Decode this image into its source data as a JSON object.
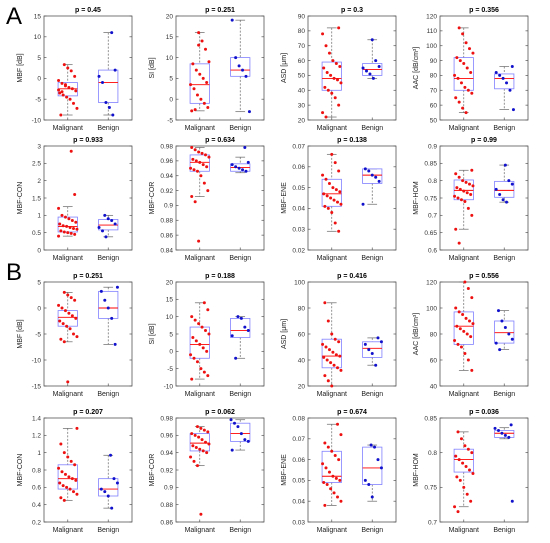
{
  "section_labels": [
    "A",
    "B"
  ],
  "colors": {
    "box": "#8080ff",
    "whisker": "#666666",
    "median": "#ff0000",
    "malignant_point": "#ee1111",
    "benign_point": "#1111cc",
    "axis": "#555555"
  },
  "chart_data": [
    {
      "section": "A",
      "type": "box",
      "title": "p = 0.45",
      "ylabel": "MBF [dB]",
      "ylim": [
        -10,
        15
      ],
      "yticks": [
        -10,
        -5,
        0,
        5,
        10,
        15
      ],
      "categories": [
        "Malignant",
        "Benign"
      ],
      "boxes": [
        {
          "q1": -4.2,
          "median": -2.5,
          "q3": -1.0,
          "lo": -8.8,
          "hi": 3.3
        },
        {
          "q1": -5.8,
          "median": -1.0,
          "q3": 2.0,
          "lo": -8.8,
          "hi": 11.0
        }
      ],
      "points": [
        [
          -0.5,
          -1.2,
          -1.8,
          -2.2,
          -2.5,
          -3.0,
          -3.5,
          -4.0,
          -4.5,
          -5.0,
          -6.0,
          -7.2,
          -8.8,
          3.3,
          2.5,
          1.8,
          0.5,
          -2.8,
          -3.2,
          -1.5
        ],
        [
          11.0,
          2.0,
          0.5,
          -1.0,
          -5.8,
          -7.0,
          -8.8
        ]
      ]
    },
    {
      "section": "A",
      "type": "box",
      "title": "p = 0.251",
      "ylabel": "SI [dB]",
      "ylim": [
        -5,
        20
      ],
      "yticks": [
        -5,
        0,
        5,
        10,
        15,
        20
      ],
      "categories": [
        "Malignant",
        "Benign"
      ],
      "boxes": [
        {
          "q1": -1.0,
          "median": 3.5,
          "q3": 8.5,
          "lo": -2.8,
          "hi": 16.0
        },
        {
          "q1": 5.5,
          "median": 7.0,
          "q3": 10.0,
          "lo": -3.0,
          "hi": 19.0
        }
      ],
      "points": [
        [
          16.0,
          14.0,
          12.0,
          9.0,
          8.5,
          7.0,
          6.0,
          5.0,
          4.0,
          3.5,
          2.5,
          1.0,
          0.0,
          -1.0,
          -2.0,
          -2.8,
          -2.5,
          13.0
        ],
        [
          19.0,
          10.0,
          8.0,
          7.0,
          5.5,
          -3.0
        ]
      ]
    },
    {
      "section": "A",
      "type": "box",
      "title": "p = 0.3",
      "ylabel": "ASD [μm]",
      "ylim": [
        20,
        90
      ],
      "yticks": [
        20,
        30,
        40,
        50,
        60,
        70,
        80,
        90
      ],
      "categories": [
        "Malignant",
        "Benign"
      ],
      "boxes": [
        {
          "q1": 40.0,
          "median": 48.0,
          "q3": 59.0,
          "lo": 22.0,
          "hi": 82.0
        },
        {
          "q1": 50.0,
          "median": 54.0,
          "q3": 58.0,
          "lo": 48.0,
          "hi": 74.0
        }
      ],
      "points": [
        [
          82.0,
          78.0,
          70.0,
          65.0,
          60.0,
          58.0,
          56.0,
          55.0,
          52.0,
          50.0,
          48.0,
          47.0,
          45.0,
          42.0,
          40.0,
          38.0,
          35.0,
          30.0,
          25.0,
          22.0
        ],
        [
          74.0,
          60.0,
          56.0,
          55.0,
          53.0,
          51.0,
          48.0
        ]
      ]
    },
    {
      "section": "A",
      "type": "box",
      "title": "p = 0.356",
      "ylabel": "AAC [dB/cm³]",
      "ylim": [
        50,
        120
      ],
      "yticks": [
        50,
        60,
        70,
        80,
        90,
        100,
        110,
        120
      ],
      "categories": [
        "Malignant",
        "Benign"
      ],
      "boxes": [
        {
          "q1": 70.0,
          "median": 78.0,
          "q3": 92.0,
          "lo": 55.0,
          "hi": 112.0
        },
        {
          "q1": 71.0,
          "median": 78.0,
          "q3": 81.0,
          "lo": 57.0,
          "hi": 86.0
        }
      ],
      "points": [
        [
          112.0,
          108.0,
          102.0,
          98.0,
          95.0,
          92.0,
          90.0,
          88.0,
          85.0,
          82.0,
          80.0,
          78.0,
          75.0,
          72.0,
          70.0,
          68.0,
          65.0,
          62.0,
          58.0,
          55.0
        ],
        [
          86.0,
          82.0,
          80.0,
          78.0,
          75.0,
          70.0,
          57.0
        ]
      ]
    },
    {
      "section": "A",
      "type": "box",
      "title": "p = 0.933",
      "ylabel": "MBF-CON",
      "ylim": [
        0,
        3
      ],
      "yticks": [
        0,
        0.5,
        1,
        1.5,
        2,
        2.5,
        3
      ],
      "categories": [
        "Malignant",
        "Benign"
      ],
      "boxes": [
        {
          "q1": 0.52,
          "median": 0.68,
          "q3": 0.95,
          "lo": 0.4,
          "hi": 1.25
        },
        {
          "q1": 0.58,
          "median": 0.72,
          "q3": 0.88,
          "lo": 0.38,
          "hi": 1.0
        }
      ],
      "points": [
        [
          2.85,
          1.6,
          1.2,
          1.0,
          0.95,
          0.9,
          0.85,
          0.8,
          0.75,
          0.7,
          0.68,
          0.65,
          0.62,
          0.6,
          0.55,
          0.52,
          0.5,
          0.48,
          0.45,
          0.4
        ],
        [
          1.0,
          0.9,
          0.85,
          0.75,
          0.65,
          0.55,
          0.38
        ]
      ]
    },
    {
      "section": "A",
      "type": "box",
      "title": "p = 0.634",
      "ylabel": "MBF-COR",
      "ylim": [
        0.84,
        0.98
      ],
      "yticks": [
        0.84,
        0.86,
        0.88,
        0.9,
        0.92,
        0.94,
        0.96,
        0.98
      ],
      "categories": [
        "Malignant",
        "Benign"
      ],
      "boxes": [
        {
          "q1": 0.946,
          "median": 0.958,
          "q3": 0.968,
          "lo": 0.912,
          "hi": 0.978
        },
        {
          "q1": 0.946,
          "median": 0.951,
          "q3": 0.956,
          "lo": 0.944,
          "hi": 0.965
        }
      ],
      "points": [
        [
          0.978,
          0.975,
          0.972,
          0.97,
          0.968,
          0.965,
          0.962,
          0.96,
          0.958,
          0.955,
          0.952,
          0.95,
          0.948,
          0.946,
          0.94,
          0.93,
          0.92,
          0.912,
          0.905,
          0.852
        ],
        [
          0.978,
          0.958,
          0.955,
          0.952,
          0.95,
          0.948,
          0.946
        ]
      ]
    },
    {
      "section": "A",
      "type": "box",
      "title": "p = 0.138",
      "ylabel": "MBF-ENE",
      "ylim": [
        0.02,
        0.07
      ],
      "yticks": [
        0.02,
        0.03,
        0.04,
        0.05,
        0.06,
        0.07
      ],
      "categories": [
        "Malignant",
        "Benign"
      ],
      "boxes": [
        {
          "q1": 0.041,
          "median": 0.047,
          "q3": 0.054,
          "lo": 0.029,
          "hi": 0.066
        },
        {
          "q1": 0.052,
          "median": 0.056,
          "q3": 0.059,
          "lo": 0.042,
          "hi": 0.059
        }
      ],
      "points": [
        [
          0.066,
          0.062,
          0.058,
          0.056,
          0.054,
          0.052,
          0.05,
          0.049,
          0.048,
          0.047,
          0.046,
          0.045,
          0.044,
          0.043,
          0.042,
          0.041,
          0.04,
          0.038,
          0.033,
          0.029
        ],
        [
          0.059,
          0.058,
          0.056,
          0.055,
          0.053,
          0.042
        ]
      ]
    },
    {
      "section": "A",
      "type": "box",
      "title": "p = 0.99",
      "ylabel": "MBF-HOM",
      "ylim": [
        0.6,
        0.9
      ],
      "yticks": [
        0.6,
        0.65,
        0.7,
        0.75,
        0.8,
        0.85,
        0.9
      ],
      "categories": [
        "Malignant",
        "Benign"
      ],
      "boxes": [
        {
          "q1": 0.745,
          "median": 0.772,
          "q3": 0.802,
          "lo": 0.66,
          "hi": 0.83
        },
        {
          "q1": 0.752,
          "median": 0.772,
          "q3": 0.798,
          "lo": 0.738,
          "hi": 0.845
        }
      ],
      "points": [
        [
          0.83,
          0.82,
          0.81,
          0.8,
          0.795,
          0.79,
          0.785,
          0.78,
          0.775,
          0.77,
          0.765,
          0.76,
          0.755,
          0.75,
          0.745,
          0.74,
          0.72,
          0.7,
          0.66,
          0.62
        ],
        [
          0.845,
          0.8,
          0.79,
          0.775,
          0.76,
          0.745,
          0.738
        ]
      ]
    },
    {
      "section": "B",
      "type": "box",
      "title": "p = 0.251",
      "ylabel": "MBF [dB]",
      "ylim": [
        -15,
        5
      ],
      "yticks": [
        -15,
        -10,
        -5,
        0,
        5
      ],
      "categories": [
        "Malignant",
        "Benign"
      ],
      "boxes": [
        {
          "q1": -3.5,
          "median": -1.8,
          "q3": -0.5,
          "lo": -6.5,
          "hi": 3.0
        },
        {
          "q1": -2.0,
          "median": 0.0,
          "q3": 3.2,
          "lo": -7.0,
          "hi": 4.0
        }
      ],
      "points": [
        [
          3.0,
          2.5,
          2.0,
          1.5,
          0.5,
          0.0,
          -0.5,
          -1.0,
          -1.5,
          -2.0,
          -2.5,
          -3.0,
          -3.5,
          -4.0,
          -5.0,
          -5.5,
          -6.0,
          -6.5,
          -14.2
        ],
        [
          4.0,
          3.2,
          1.5,
          0.0,
          -2.0,
          -7.0
        ]
      ]
    },
    {
      "section": "B",
      "type": "box",
      "title": "p = 0.188",
      "ylabel": "SI [dB]",
      "ylim": [
        -10,
        20
      ],
      "yticks": [
        -10,
        -5,
        0,
        5,
        10,
        15,
        20
      ],
      "categories": [
        "Malignant",
        "Benign"
      ],
      "boxes": [
        {
          "q1": -2.0,
          "median": 2.0,
          "q3": 7.0,
          "lo": -8.0,
          "hi": 14.0
        },
        {
          "q1": 4.0,
          "median": 6.0,
          "q3": 9.5,
          "lo": -2.0,
          "hi": 10.0
        }
      ],
      "points": [
        [
          14.0,
          12.0,
          10.0,
          9.0,
          8.0,
          7.0,
          6.0,
          5.0,
          4.0,
          3.0,
          2.0,
          1.0,
          0.0,
          -1.0,
          -2.0,
          -3.0,
          -5.0,
          -6.0,
          -7.0,
          -8.0
        ],
        [
          10.0,
          9.5,
          7.0,
          6.0,
          4.5,
          -2.0
        ]
      ]
    },
    {
      "section": "B",
      "type": "box",
      "title": "p = 0.416",
      "ylabel": "ASD [μm]",
      "ylim": [
        20,
        100
      ],
      "yticks": [
        20,
        40,
        60,
        80,
        100
      ],
      "categories": [
        "Malignant",
        "Benign"
      ],
      "boxes": [
        {
          "q1": 34.0,
          "median": 43.0,
          "q3": 56.0,
          "lo": 20.0,
          "hi": 84.0
        },
        {
          "q1": 42.0,
          "median": 49.0,
          "q3": 54.0,
          "lo": 36.0,
          "hi": 57.0
        }
      ],
      "points": [
        [
          84.0,
          70.0,
          60.0,
          56.0,
          54.0,
          52.0,
          50.0,
          48.0,
          46.0,
          44.0,
          43.0,
          42.0,
          40.0,
          38.0,
          36.0,
          34.0,
          32.0,
          28.0,
          24.0,
          20.0
        ],
        [
          57.0,
          54.0,
          52.0,
          48.0,
          45.0,
          36.0
        ]
      ]
    },
    {
      "section": "B",
      "type": "box",
      "title": "p = 0.556",
      "ylabel": "AAC [dB/cm³]",
      "ylim": [
        40,
        120
      ],
      "yticks": [
        40,
        60,
        80,
        100,
        120
      ],
      "categories": [
        "Malignant",
        "Benign"
      ],
      "boxes": [
        {
          "q1": 72.0,
          "median": 86.0,
          "q3": 97.0,
          "lo": 52.0,
          "hi": 120.0
        },
        {
          "q1": 73.0,
          "median": 81.0,
          "q3": 90.0,
          "lo": 68.0,
          "hi": 98.0
        }
      ],
      "points": [
        [
          120.0,
          115.0,
          108.0,
          100.0,
          97.0,
          95.0,
          92.0,
          90.0,
          88.0,
          86.0,
          84.0,
          82.0,
          80.0,
          78.0,
          75.0,
          72.0,
          70.0,
          65.0,
          60.0,
          52.0
        ],
        [
          98.0,
          90.0,
          85.0,
          80.0,
          76.0,
          73.0,
          68.0
        ]
      ]
    },
    {
      "section": "B",
      "type": "box",
      "title": "p = 0.207",
      "ylabel": "MBF-CON",
      "ylim": [
        0.2,
        1.4
      ],
      "yticks": [
        0.2,
        0.4,
        0.6,
        0.8,
        1.0,
        1.2,
        1.4
      ],
      "categories": [
        "Malignant",
        "Benign"
      ],
      "boxes": [
        {
          "q1": 0.58,
          "median": 0.7,
          "q3": 0.86,
          "lo": 0.45,
          "hi": 1.28
        },
        {
          "q1": 0.5,
          "median": 0.58,
          "q3": 0.7,
          "lo": 0.36,
          "hi": 0.97
        }
      ],
      "points": [
        [
          1.28,
          1.1,
          1.0,
          0.95,
          0.9,
          0.86,
          0.82,
          0.78,
          0.75,
          0.72,
          0.7,
          0.68,
          0.65,
          0.62,
          0.6,
          0.58,
          0.55,
          0.52,
          0.48,
          0.45
        ],
        [
          0.97,
          0.7,
          0.65,
          0.58,
          0.55,
          0.5,
          0.36
        ]
      ]
    },
    {
      "section": "B",
      "type": "box",
      "title": "p = 0.062",
      "ylabel": "MBF-COR",
      "ylim": [
        0.86,
        0.98
      ],
      "yticks": [
        0.86,
        0.88,
        0.9,
        0.92,
        0.94,
        0.96,
        0.98
      ],
      "categories": [
        "Malignant",
        "Benign"
      ],
      "boxes": [
        {
          "q1": 0.942,
          "median": 0.951,
          "q3": 0.962,
          "lo": 0.925,
          "hi": 0.97
        },
        {
          "q1": 0.953,
          "median": 0.962,
          "q3": 0.974,
          "lo": 0.943,
          "hi": 0.978
        }
      ],
      "points": [
        [
          0.97,
          0.968,
          0.966,
          0.964,
          0.962,
          0.96,
          0.958,
          0.955,
          0.952,
          0.95,
          0.948,
          0.946,
          0.944,
          0.942,
          0.94,
          0.935,
          0.93,
          0.925,
          0.869
        ],
        [
          0.978,
          0.974,
          0.97,
          0.962,
          0.955,
          0.953,
          0.943
        ]
      ]
    },
    {
      "section": "B",
      "type": "box",
      "title": "p = 0.674",
      "ylabel": "MBF-ENE",
      "ylim": [
        0.03,
        0.08
      ],
      "yticks": [
        0.03,
        0.04,
        0.05,
        0.06,
        0.07,
        0.08
      ],
      "categories": [
        "Malignant",
        "Benign"
      ],
      "boxes": [
        {
          "q1": 0.049,
          "median": 0.052,
          "q3": 0.064,
          "lo": 0.038,
          "hi": 0.077
        },
        {
          "q1": 0.048,
          "median": 0.056,
          "q3": 0.066,
          "lo": 0.04,
          "hi": 0.067
        }
      ],
      "points": [
        [
          0.077,
          0.072,
          0.068,
          0.066,
          0.064,
          0.062,
          0.06,
          0.058,
          0.056,
          0.054,
          0.052,
          0.051,
          0.05,
          0.049,
          0.048,
          0.046,
          0.044,
          0.042,
          0.04,
          0.038
        ],
        [
          0.067,
          0.066,
          0.06,
          0.056,
          0.05,
          0.048,
          0.042
        ]
      ]
    },
    {
      "section": "B",
      "type": "box",
      "title": "p = 0.036",
      "ylabel": "MBF-HOM",
      "ylim": [
        0.7,
        0.85
      ],
      "yticks": [
        0.7,
        0.75,
        0.8,
        0.85
      ],
      "categories": [
        "Malignant",
        "Benign"
      ],
      "boxes": [
        {
          "q1": 0.772,
          "median": 0.79,
          "q3": 0.805,
          "lo": 0.722,
          "hi": 0.83
        },
        {
          "q1": 0.822,
          "median": 0.828,
          "q3": 0.832,
          "lo": 0.82,
          "hi": 0.836
        }
      ],
      "points": [
        [
          0.83,
          0.82,
          0.81,
          0.805,
          0.8,
          0.795,
          0.79,
          0.785,
          0.78,
          0.775,
          0.77,
          0.765,
          0.76,
          0.75,
          0.74,
          0.73,
          0.722,
          0.715
        ],
        [
          0.84,
          0.835,
          0.832,
          0.828,
          0.825,
          0.822,
          0.73
        ]
      ]
    }
  ]
}
